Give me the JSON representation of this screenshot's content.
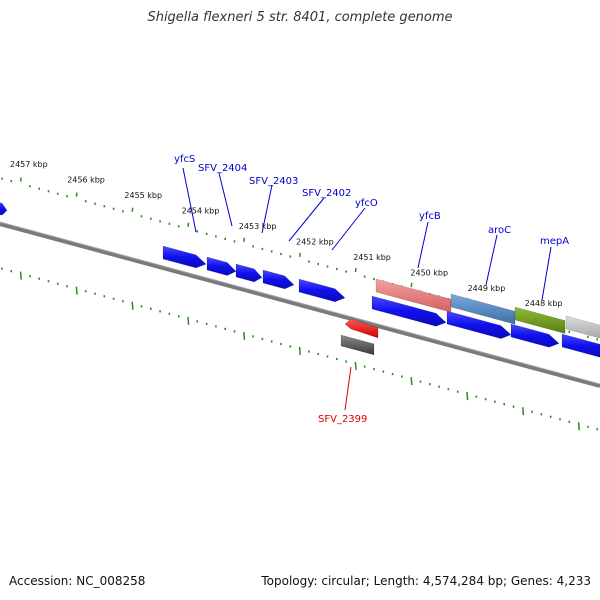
{
  "title": "Shigella flexneri 5 str. 8401, complete genome",
  "footer": {
    "accession": "Accession: NC_008258",
    "summary": "Topology: circular; Length: 4,574,284 bp; Genes: 4,233"
  },
  "colors": {
    "tick": "#2e8b22",
    "backbone": "#7a7a7a",
    "gene_blue": "#1515e6",
    "gene_red": "#ee1111",
    "gene_gray": "#555555",
    "label_blue": "#0000cc",
    "label_red": "#dd0000",
    "feature_pink": "#e27a7a",
    "feature_steel": "#4f86c0",
    "feature_olive": "#6a9a1f",
    "feature_silver": "#bdbdbd"
  },
  "kbp_labels": [
    "2457 kbp",
    "2456 kbp",
    "2455 kbp",
    "2454 kbp",
    "2453 kbp",
    "2452 kbp",
    "2451 kbp",
    "2450 kbp",
    "2449 kbp",
    "2448 kbp"
  ],
  "gene_labels": [
    {
      "name": "yfcS",
      "color": "label_blue"
    },
    {
      "name": "SFV_2404",
      "color": "label_blue"
    },
    {
      "name": "SFV_2403",
      "color": "label_blue"
    },
    {
      "name": "SFV_2402",
      "color": "label_blue"
    },
    {
      "name": "yfcO",
      "color": "label_blue"
    },
    {
      "name": "yfcB",
      "color": "label_blue"
    },
    {
      "name": "aroC",
      "color": "label_blue"
    },
    {
      "name": "mepA",
      "color": "label_blue"
    },
    {
      "name": "SFV_2399",
      "color": "label_red"
    }
  ]
}
